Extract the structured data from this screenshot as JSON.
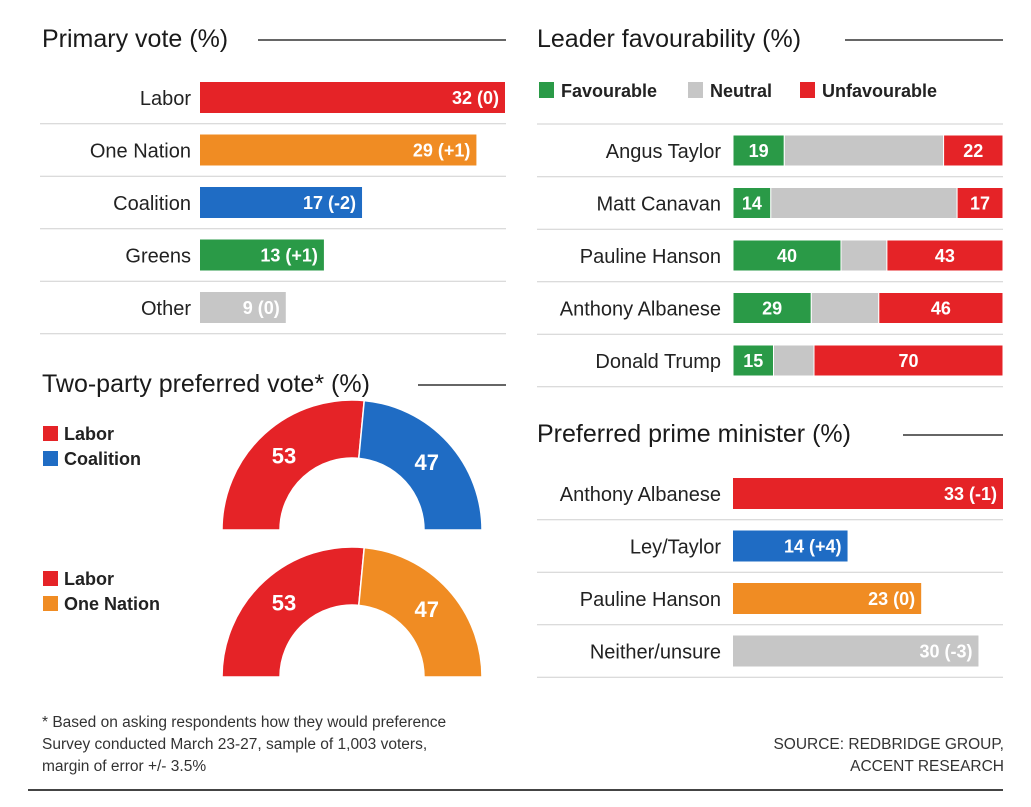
{
  "colors": {
    "labor": "#e52327",
    "one_nation": "#f08c23",
    "coalition": "#1f6cc4",
    "greens": "#2a9a47",
    "other": "#c6c6c6",
    "neutral": "#c6c6c6"
  },
  "chart_data": [
    {
      "id": "primary",
      "type": "bar",
      "title": "Primary vote (%)",
      "xlim": [
        0,
        32
      ],
      "categories": [
        "Labor",
        "One Nation",
        "Coalition",
        "Greens",
        "Other"
      ],
      "values": [
        32,
        29,
        17,
        13,
        9
      ],
      "labels": [
        "32 (0)",
        "29 (+1)",
        "17 (-2)",
        "13 (+1)",
        "9 (0)"
      ],
      "colors": [
        "labor",
        "one_nation",
        "coalition",
        "greens",
        "other"
      ]
    },
    {
      "id": "favourability",
      "type": "bar",
      "stacked": true,
      "title": "Leader favourability (%)",
      "xlim": [
        0,
        100
      ],
      "legend": [
        "Favourable",
        "Neutral",
        "Unfavourable"
      ],
      "categories": [
        "Angus Taylor",
        "Matt Canavan",
        "Pauline Hanson",
        "Anthony Albanese",
        "Donald Trump"
      ],
      "series": [
        {
          "name": "Favourable",
          "color": "greens",
          "values": [
            19,
            14,
            40,
            29,
            15
          ]
        },
        {
          "name": "Neutral",
          "color": "neutral",
          "values": [
            59,
            69,
            17,
            25,
            15
          ]
        },
        {
          "name": "Unfavourable",
          "color": "labor",
          "values": [
            22,
            17,
            43,
            46,
            70
          ]
        }
      ]
    },
    {
      "id": "tpp",
      "type": "pie",
      "title": "Two-party preferred vote* (%)",
      "donuts": [
        {
          "legend": [
            "Labor",
            "Coalition"
          ],
          "values": [
            53,
            47
          ],
          "colors": [
            "labor",
            "coalition"
          ]
        },
        {
          "legend": [
            "Labor",
            "One Nation"
          ],
          "values": [
            53,
            47
          ],
          "colors": [
            "labor",
            "one_nation"
          ]
        }
      ]
    },
    {
      "id": "ppm",
      "type": "bar",
      "title": "Preferred prime minister (%)",
      "xlim": [
        0,
        33
      ],
      "categories": [
        "Anthony Albanese",
        "Ley/Taylor",
        "Pauline Hanson",
        "Neither/unsure"
      ],
      "values": [
        33,
        14,
        23,
        30
      ],
      "labels": [
        "33 (-1)",
        "14 (+4)",
        "23 (0)",
        "30 (-3)"
      ],
      "colors": [
        "labor",
        "coalition",
        "one_nation",
        "other"
      ]
    }
  ],
  "footnote": {
    "lines": [
      "* Based on asking respondents how they would preference",
      "Survey conducted March 23-27, sample of 1,003 voters,",
      "margin of error +/- 3.5%"
    ]
  },
  "source": {
    "lines": [
      "SOURCE: REDBRIDGE GROUP,",
      "ACCENT RESEARCH"
    ]
  }
}
